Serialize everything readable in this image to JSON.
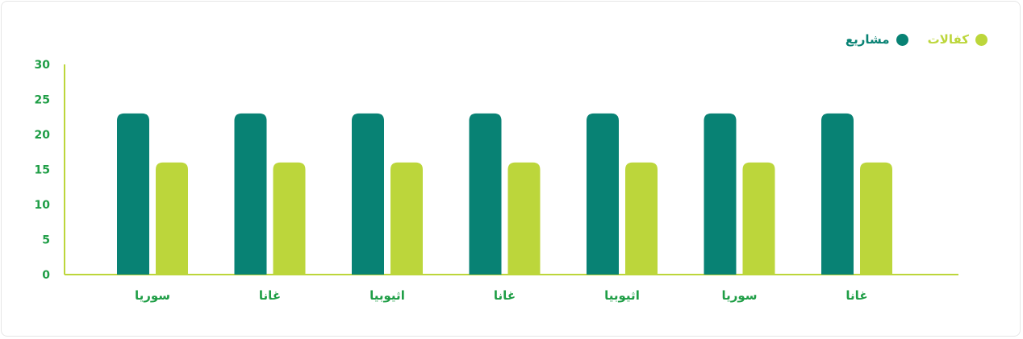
{
  "colors": {
    "projects": "#088274",
    "sponsorships": "#bcd63b",
    "axis": "#bcd63b",
    "tick_text": "#1f9e46",
    "category_text": "#1f9e46"
  },
  "legend": {
    "projects_label": "مشاريع",
    "sponsorships_label": "كفالات"
  },
  "chart_data": {
    "type": "bar",
    "categories": [
      "سوريا",
      "غانا",
      "اثيوبيا",
      "غانا",
      "اثيوبيا",
      "سوريا",
      "غانا"
    ],
    "series": [
      {
        "name": "مشاريع",
        "values": [
          23,
          23,
          23,
          23,
          23,
          23,
          23
        ]
      },
      {
        "name": "كفالات",
        "values": [
          16,
          16,
          16,
          16,
          16,
          16,
          16
        ]
      }
    ],
    "ylim": [
      0,
      30
    ],
    "yticks": [
      0,
      5,
      10,
      15,
      20,
      25,
      30
    ],
    "grid": false,
    "legend_position": "top-right"
  }
}
